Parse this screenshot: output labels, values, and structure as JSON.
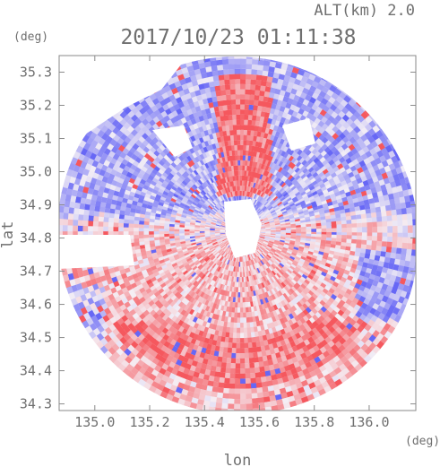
{
  "chart_data": {
    "type": "heatmap",
    "title": "2017/10/23 01:11:38",
    "altitude_label": "ALT(km) 2.0",
    "xlabel": "lon",
    "ylabel": "lat",
    "x_unit": "(deg)",
    "y_unit": "(deg)",
    "xlim": [
      134.87,
      136.17
    ],
    "ylim": [
      34.28,
      35.35
    ],
    "x_ticks": [
      135.0,
      135.2,
      135.4,
      135.6,
      135.8,
      136.0
    ],
    "x_tick_labels": [
      "135.0",
      "135.2",
      "135.4",
      "135.6",
      "135.8",
      "136.0"
    ],
    "y_ticks": [
      34.3,
      34.4,
      34.5,
      34.6,
      34.7,
      34.8,
      34.9,
      35.0,
      35.1,
      35.2,
      35.3
    ],
    "y_tick_labels": [
      "34.3",
      "34.4",
      "34.5",
      "34.6",
      "34.7",
      "34.8",
      "34.9",
      "35.0",
      "35.1",
      "35.2",
      "35.3"
    ],
    "radar_center": {
      "lon": 135.53,
      "lat": 34.82
    },
    "colors": {
      "positive": "#f06a6a",
      "negative": "#6a6af0",
      "neutral": "#f4eef4",
      "frame": "#8a8a8a",
      "text": "#6f6f6f"
    }
  }
}
